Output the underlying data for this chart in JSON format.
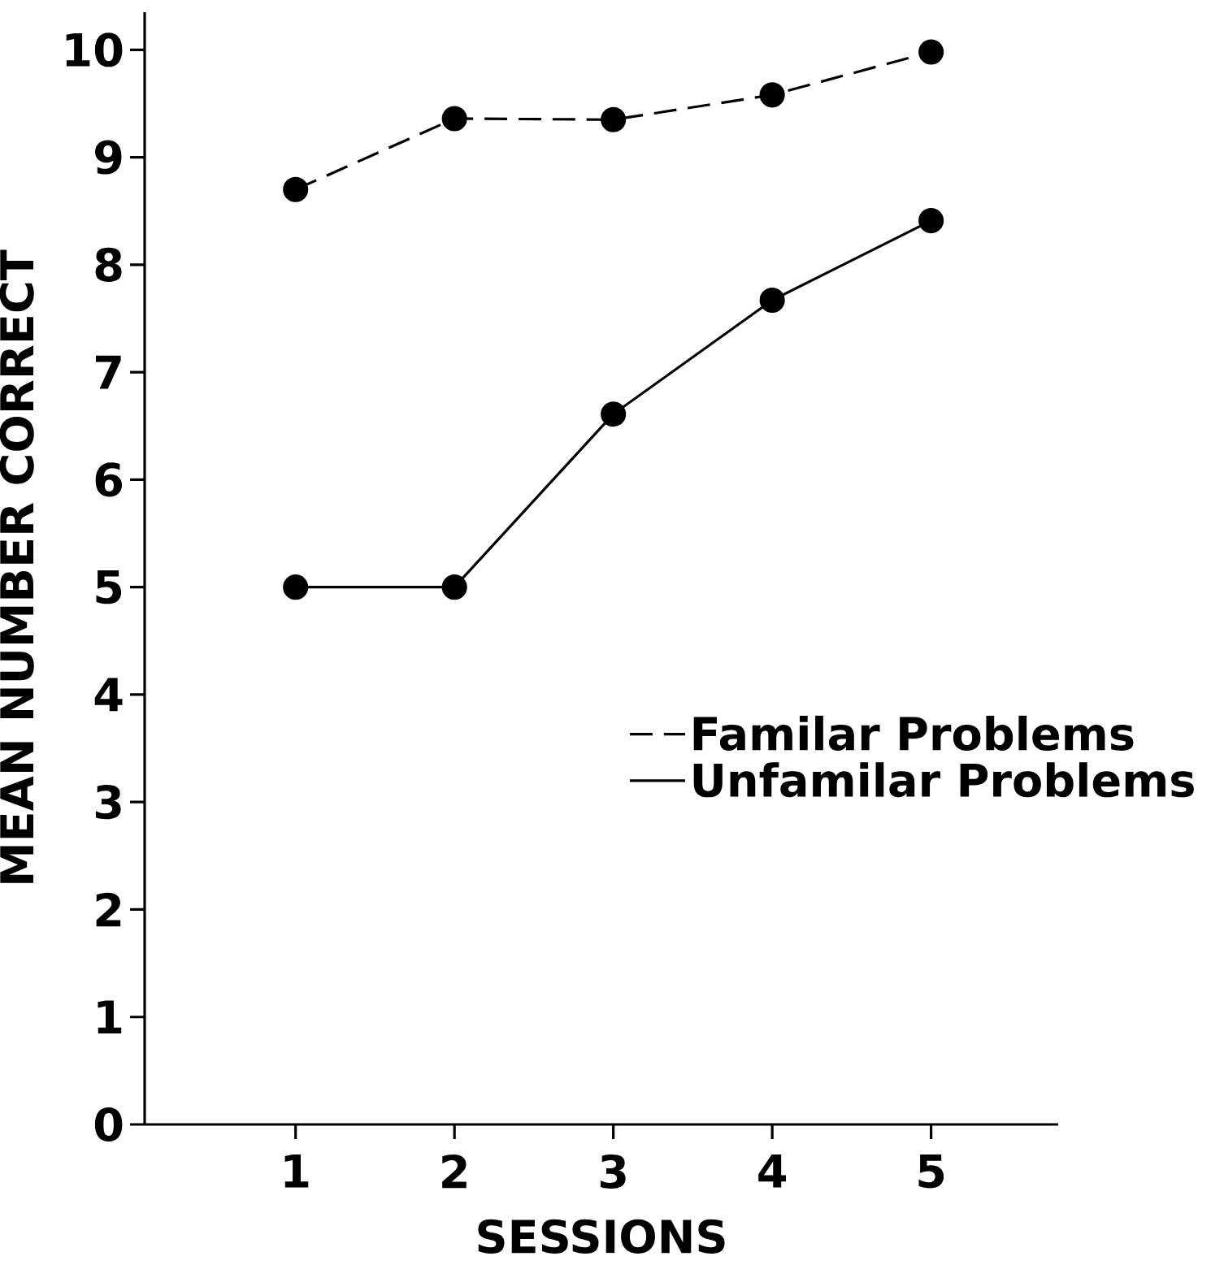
{
  "chart_data": {
    "type": "line",
    "xlabel": "SESSIONS",
    "ylabel": "MEAN  NUMBER CORRECT",
    "x": [
      1,
      2,
      3,
      4,
      5
    ],
    "xlim": [
      0.05,
      5.8
    ],
    "xticks": [
      1,
      2,
      3,
      4,
      5
    ],
    "ylim": [
      0,
      10.35
    ],
    "yticks": [
      0,
      1,
      2,
      3,
      4,
      5,
      6,
      7,
      8,
      9,
      10
    ],
    "marker": "circle",
    "legend": "right",
    "grid": false,
    "series": [
      {
        "name": "Familar  Problems",
        "color": "#000000",
        "line_style": "dashed",
        "values": [
          8.7,
          9.36,
          9.35,
          9.58,
          9.98
        ]
      },
      {
        "name": "Unfamilar  Problems",
        "color": "#000000",
        "line_style": "solid",
        "values": [
          5.0,
          5.0,
          6.61,
          7.67,
          8.41
        ]
      }
    ]
  }
}
